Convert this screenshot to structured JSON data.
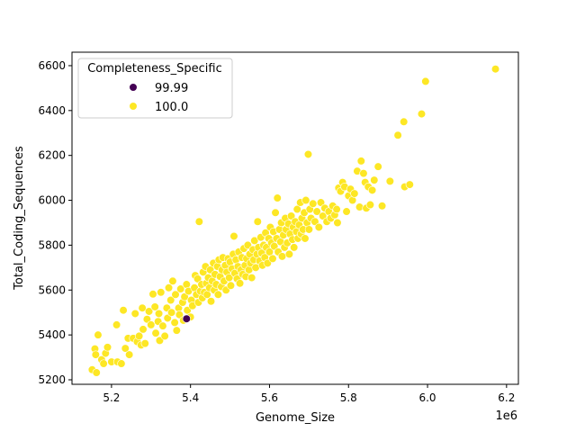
{
  "chart_data": {
    "type": "scatter",
    "xlabel": "Genome_Size",
    "ylabel": "Total_Coding_Sequences",
    "x_offset_label": "1e6",
    "xlim": [
      5.1,
      6.23
    ],
    "ylim": [
      5180,
      6660
    ],
    "x_ticks": [
      5.2,
      5.4,
      5.6,
      5.8,
      6.0,
      6.2
    ],
    "x_tick_labels": [
      "5.2",
      "5.4",
      "5.6",
      "5.8",
      "6.0",
      "6.2"
    ],
    "y_ticks": [
      5200,
      5400,
      5600,
      5800,
      6000,
      6200,
      6400,
      6600
    ],
    "y_tick_labels": [
      "5200",
      "5400",
      "5600",
      "5800",
      "6000",
      "6200",
      "6400",
      "6600"
    ],
    "grid": false,
    "legend": {
      "title": "Completeness_Specific",
      "placement": "top-left",
      "entries": [
        {
          "label": "99.99",
          "color": "#440154"
        },
        {
          "label": "100.0",
          "color": "#fde725"
        }
      ]
    },
    "series": [
      {
        "name": "100.0",
        "color": "#fde725",
        "points": [
          [
            5.151,
            5245
          ],
          [
            5.162,
            5232
          ],
          [
            5.158,
            5338
          ],
          [
            5.16,
            5312
          ],
          [
            5.166,
            5400
          ],
          [
            5.175,
            5290
          ],
          [
            5.18,
            5272
          ],
          [
            5.185,
            5318
          ],
          [
            5.19,
            5345
          ],
          [
            5.2,
            5280
          ],
          [
            5.213,
            5445
          ],
          [
            5.215,
            5280
          ],
          [
            5.225,
            5272
          ],
          [
            5.23,
            5510
          ],
          [
            5.235,
            5340
          ],
          [
            5.242,
            5385
          ],
          [
            5.245,
            5312
          ],
          [
            5.255,
            5385
          ],
          [
            5.26,
            5495
          ],
          [
            5.265,
            5370
          ],
          [
            5.27,
            5395
          ],
          [
            5.275,
            5355
          ],
          [
            5.278,
            5520
          ],
          [
            5.28,
            5425
          ],
          [
            5.285,
            5362
          ],
          [
            5.29,
            5470
          ],
          [
            5.295,
            5505
          ],
          [
            5.3,
            5445
          ],
          [
            5.305,
            5582
          ],
          [
            5.31,
            5525
          ],
          [
            5.312,
            5408
          ],
          [
            5.318,
            5460
          ],
          [
            5.32,
            5495
          ],
          [
            5.322,
            5375
          ],
          [
            5.325,
            5590
          ],
          [
            5.33,
            5440
          ],
          [
            5.335,
            5395
          ],
          [
            5.34,
            5520
          ],
          [
            5.342,
            5475
          ],
          [
            5.345,
            5610
          ],
          [
            5.35,
            5555
          ],
          [
            5.352,
            5500
          ],
          [
            5.355,
            5640
          ],
          [
            5.36,
            5455
          ],
          [
            5.362,
            5580
          ],
          [
            5.365,
            5420
          ],
          [
            5.37,
            5520
          ],
          [
            5.372,
            5490
          ],
          [
            5.375,
            5605
          ],
          [
            5.38,
            5545
          ],
          [
            5.382,
            5465
          ],
          [
            5.385,
            5570
          ],
          [
            5.39,
            5625
          ],
          [
            5.392,
            5510
          ],
          [
            5.395,
            5595
          ],
          [
            5.4,
            5480
          ],
          [
            5.402,
            5555
          ],
          [
            5.405,
            5530
          ],
          [
            5.41,
            5610
          ],
          [
            5.412,
            5665
          ],
          [
            5.415,
            5580
          ],
          [
            5.418,
            5650
          ],
          [
            5.42,
            5545
          ],
          [
            5.422,
            5905
          ],
          [
            5.425,
            5595
          ],
          [
            5.428,
            5625
          ],
          [
            5.43,
            5565
          ],
          [
            5.432,
            5680
          ],
          [
            5.435,
            5590
          ],
          [
            5.438,
            5705
          ],
          [
            5.44,
            5630
          ],
          [
            5.442,
            5580
          ],
          [
            5.445,
            5655
          ],
          [
            5.448,
            5610
          ],
          [
            5.45,
            5690
          ],
          [
            5.452,
            5550
          ],
          [
            5.455,
            5640
          ],
          [
            5.458,
            5720
          ],
          [
            5.46,
            5600
          ],
          [
            5.462,
            5670
          ],
          [
            5.465,
            5625
          ],
          [
            5.468,
            5705
          ],
          [
            5.47,
            5580
          ],
          [
            5.472,
            5735
          ],
          [
            5.475,
            5660
          ],
          [
            5.478,
            5615
          ],
          [
            5.48,
            5690
          ],
          [
            5.482,
            5745
          ],
          [
            5.485,
            5640
          ],
          [
            5.488,
            5710
          ],
          [
            5.49,
            5600
          ],
          [
            5.492,
            5680
          ],
          [
            5.495,
            5740
          ],
          [
            5.498,
            5655
          ],
          [
            5.5,
            5725
          ],
          [
            5.502,
            5620
          ],
          [
            5.505,
            5695
          ],
          [
            5.508,
            5760
          ],
          [
            5.51,
            5840
          ],
          [
            5.512,
            5675
          ],
          [
            5.515,
            5735
          ],
          [
            5.518,
            5650
          ],
          [
            5.52,
            5705
          ],
          [
            5.522,
            5770
          ],
          [
            5.525,
            5630
          ],
          [
            5.528,
            5690
          ],
          [
            5.53,
            5745
          ],
          [
            5.532,
            5670
          ],
          [
            5.535,
            5785
          ],
          [
            5.538,
            5710
          ],
          [
            5.54,
            5660
          ],
          [
            5.542,
            5740
          ],
          [
            5.545,
            5800
          ],
          [
            5.548,
            5690
          ],
          [
            5.55,
            5760
          ],
          [
            5.552,
            5720
          ],
          [
            5.555,
            5655
          ],
          [
            5.558,
            5780
          ],
          [
            5.56,
            5735
          ],
          [
            5.562,
            5820
          ],
          [
            5.565,
            5700
          ],
          [
            5.568,
            5760
          ],
          [
            5.57,
            5905
          ],
          [
            5.572,
            5790
          ],
          [
            5.575,
            5730
          ],
          [
            5.578,
            5835
          ],
          [
            5.58,
            5765
          ],
          [
            5.582,
            5710
          ],
          [
            5.585,
            5800
          ],
          [
            5.588,
            5745
          ],
          [
            5.59,
            5855
          ],
          [
            5.592,
            5790
          ],
          [
            5.595,
            5720
          ],
          [
            5.598,
            5830
          ],
          [
            5.6,
            5770
          ],
          [
            5.602,
            5880
          ],
          [
            5.605,
            5810
          ],
          [
            5.608,
            5740
          ],
          [
            5.61,
            5860
          ],
          [
            5.612,
            5795
          ],
          [
            5.615,
            5945
          ],
          [
            5.618,
            5830
          ],
          [
            5.62,
            6010
          ],
          [
            5.622,
            5770
          ],
          [
            5.625,
            5870
          ],
          [
            5.628,
            5815
          ],
          [
            5.63,
            5900
          ],
          [
            5.632,
            5750
          ],
          [
            5.635,
            5845
          ],
          [
            5.638,
            5790
          ],
          [
            5.64,
            5920
          ],
          [
            5.642,
            5870
          ],
          [
            5.645,
            5810
          ],
          [
            5.648,
            5895
          ],
          [
            5.65,
            5760
          ],
          [
            5.652,
            5850
          ],
          [
            5.655,
            5930
          ],
          [
            5.658,
            5825
          ],
          [
            5.66,
            5880
          ],
          [
            5.662,
            5790
          ],
          [
            5.665,
            5905
          ],
          [
            5.668,
            5860
          ],
          [
            5.67,
            5960
          ],
          [
            5.672,
            5830
          ],
          [
            5.675,
            5890
          ],
          [
            5.678,
            5990
          ],
          [
            5.68,
            5850
          ],
          [
            5.682,
            5920
          ],
          [
            5.685,
            5870
          ],
          [
            5.688,
            5945
          ],
          [
            5.69,
            5830
          ],
          [
            5.692,
            6000
          ],
          [
            5.695,
            5900
          ],
          [
            5.698,
            6205
          ],
          [
            5.7,
            5870
          ],
          [
            5.702,
            5960
          ],
          [
            5.705,
            5920
          ],
          [
            5.71,
            5985
          ],
          [
            5.715,
            5905
          ],
          [
            5.72,
            5950
          ],
          [
            5.725,
            5880
          ],
          [
            5.73,
            5990
          ],
          [
            5.735,
            5930
          ],
          [
            5.74,
            5965
          ],
          [
            5.745,
            5905
          ],
          [
            5.75,
            5950
          ],
          [
            5.755,
            5920
          ],
          [
            5.76,
            5975
          ],
          [
            5.765,
            5935
          ],
          [
            5.77,
            5960
          ],
          [
            5.772,
            5900
          ],
          [
            5.775,
            6055
          ],
          [
            5.78,
            6040
          ],
          [
            5.785,
            6080
          ],
          [
            5.79,
            6060
          ],
          [
            5.795,
            5950
          ],
          [
            5.8,
            6020
          ],
          [
            5.805,
            6050
          ],
          [
            5.81,
            6000
          ],
          [
            5.815,
            6030
          ],
          [
            5.822,
            6130
          ],
          [
            5.828,
            5970
          ],
          [
            5.832,
            6175
          ],
          [
            5.838,
            6120
          ],
          [
            5.842,
            6080
          ],
          [
            5.845,
            5965
          ],
          [
            5.85,
            6060
          ],
          [
            5.855,
            5980
          ],
          [
            5.86,
            6045
          ],
          [
            5.865,
            6090
          ],
          [
            5.875,
            6150
          ],
          [
            5.885,
            5975
          ],
          [
            5.905,
            6085
          ],
          [
            5.925,
            6290
          ],
          [
            5.94,
            6350
          ],
          [
            5.942,
            6060
          ],
          [
            5.955,
            6070
          ],
          [
            5.985,
            6385
          ],
          [
            5.995,
            6530
          ],
          [
            6.172,
            6585
          ]
        ]
      },
      {
        "name": "99.99",
        "color": "#440154",
        "points": [
          [
            5.39,
            5472
          ]
        ]
      }
    ]
  }
}
